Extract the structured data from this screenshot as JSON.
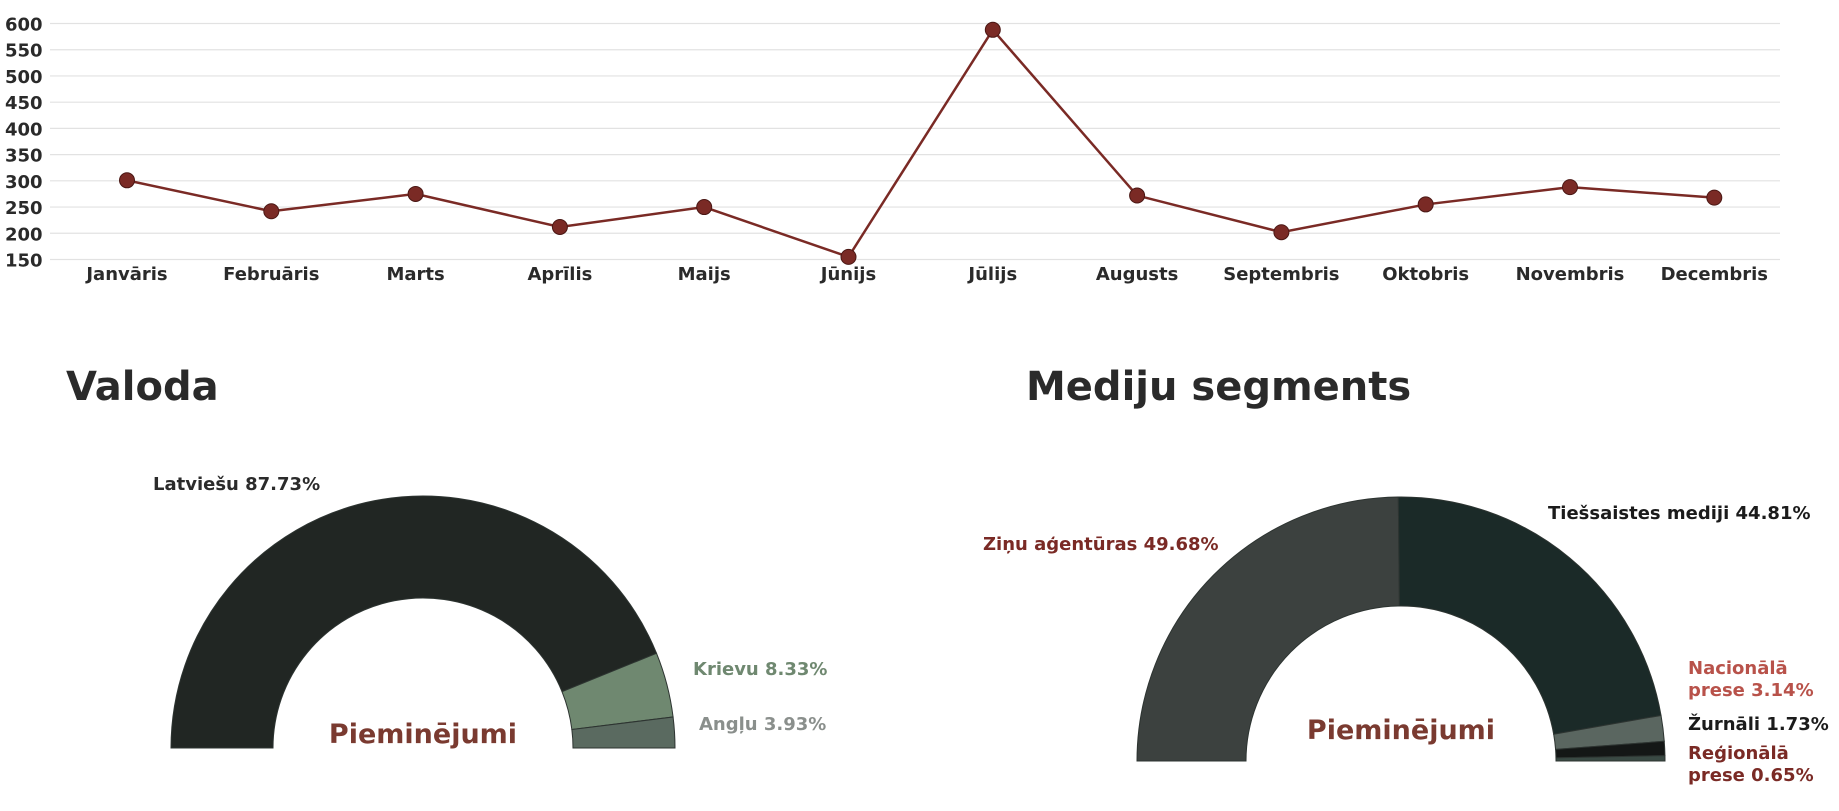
{
  "chart_data": [
    {
      "type": "line",
      "categories": [
        "Janvāris",
        "Februāris",
        "Marts",
        "Aprīlis",
        "Maijs",
        "Jūnijs",
        "Jūlijs",
        "Augusts",
        "Septembris",
        "Oktobris",
        "Novembris",
        "Decembris"
      ],
      "values": [
        301,
        242,
        275,
        212,
        250,
        155,
        588,
        272,
        202,
        255,
        288,
        268
      ],
      "y_ticks": [
        "600",
        "550",
        "500",
        "450",
        "400",
        "350",
        "300",
        "250",
        "200",
        "150"
      ],
      "ylim": [
        120,
        620
      ],
      "grid": true,
      "line_color": "#7a2a25"
    },
    {
      "type": "pie",
      "title": "Valoda",
      "center_label": "Pieminējumi",
      "slices": [
        {
          "label": "Latviešu 87.73%",
          "value": 87.73,
          "color": "#212623",
          "text_color": "#2b2b2b"
        },
        {
          "label": "Krievu 8.33%",
          "value": 8.33,
          "color": "#6f8870",
          "text_color": "#6f8870"
        },
        {
          "label": "Angļu 3.93%",
          "value": 3.93,
          "color": "#5a6a60",
          "text_color": "#8a8f8c"
        }
      ]
    },
    {
      "type": "pie",
      "title": "Mediju segments",
      "center_label": "Pieminējumi",
      "slices": [
        {
          "label": "Ziņu aģentūras 49.68%",
          "value": 49.68,
          "color": "#3c413f",
          "text_color": "#7a2a25"
        },
        {
          "label": "Tiešsaistes mediji 44.81%",
          "value": 44.81,
          "color": "#1b2a28",
          "text_color": "#1b1b1b"
        },
        {
          "label_lines": [
            "Nacionālā",
            "prese 3.14%"
          ],
          "value": 3.14,
          "color": "#5a6660",
          "text_color": "#b8524a"
        },
        {
          "label": "Žurnāli 1.73%",
          "value": 1.73,
          "color": "#141716",
          "text_color": "#1b1b1b"
        },
        {
          "label_lines": [
            "Reģionālā",
            "prese 0.65%"
          ],
          "value": 0.65,
          "color": "#3a4a44",
          "text_color": "#7a2a25"
        }
      ]
    }
  ]
}
